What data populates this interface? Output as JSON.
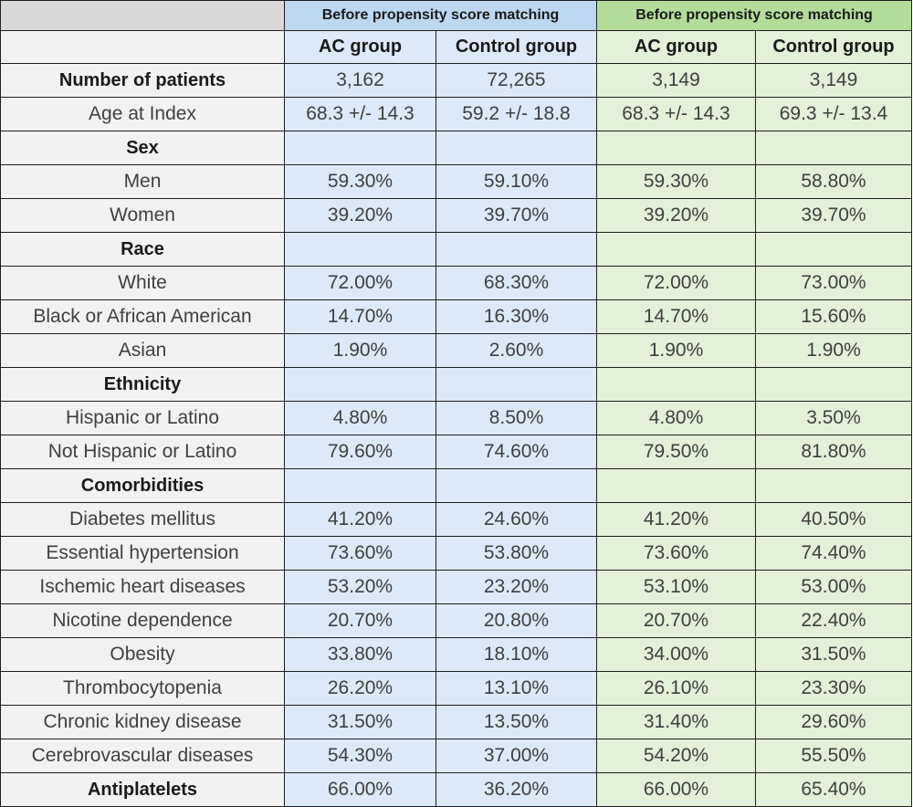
{
  "header": {
    "group_before": "Before propensity score matching",
    "group_after": "Before propensity score matching",
    "columns": [
      "AC group",
      "Control group",
      "AC group",
      "Control group"
    ]
  },
  "rows": [
    {
      "label": "Number of patients",
      "bold": true,
      "values": [
        "3,162",
        "72,265",
        "3,149",
        "3,149"
      ]
    },
    {
      "label": "Age at Index",
      "bold": false,
      "values": [
        "68.3 +/- 14.3",
        "59.2 +/- 18.8",
        "68.3 +/- 14.3",
        "69.3 +/- 13.4"
      ]
    },
    {
      "label": "Sex",
      "bold": true,
      "values": [
        "",
        "",
        "",
        ""
      ]
    },
    {
      "label": "Men",
      "bold": false,
      "values": [
        "59.30%",
        "59.10%",
        "59.30%",
        "58.80%"
      ]
    },
    {
      "label": "Women",
      "bold": false,
      "values": [
        "39.20%",
        "39.70%",
        "39.20%",
        "39.70%"
      ]
    },
    {
      "label": "Race",
      "bold": true,
      "values": [
        "",
        "",
        "",
        ""
      ]
    },
    {
      "label": "White",
      "bold": false,
      "values": [
        "72.00%",
        "68.30%",
        "72.00%",
        "73.00%"
      ]
    },
    {
      "label": "Black or African American",
      "bold": false,
      "values": [
        "14.70%",
        "16.30%",
        "14.70%",
        "15.60%"
      ]
    },
    {
      "label": "Asian",
      "bold": false,
      "values": [
        "1.90%",
        "2.60%",
        "1.90%",
        "1.90%"
      ]
    },
    {
      "label": "Ethnicity",
      "bold": true,
      "values": [
        "",
        "",
        "",
        ""
      ]
    },
    {
      "label": "Hispanic or Latino",
      "bold": false,
      "values": [
        "4.80%",
        "8.50%",
        "4.80%",
        "3.50%"
      ]
    },
    {
      "label": "Not Hispanic or Latino",
      "bold": false,
      "values": [
        "79.60%",
        "74.60%",
        "79.50%",
        "81.80%"
      ]
    },
    {
      "label": "Comorbidities",
      "bold": true,
      "values": [
        "",
        "",
        "",
        ""
      ]
    },
    {
      "label": "Diabetes mellitus",
      "bold": false,
      "values": [
        "41.20%",
        "24.60%",
        "41.20%",
        "40.50%"
      ]
    },
    {
      "label": "Essential hypertension",
      "bold": false,
      "values": [
        "73.60%",
        "53.80%",
        "73.60%",
        "74.40%"
      ]
    },
    {
      "label": "Ischemic heart diseases",
      "bold": false,
      "values": [
        "53.20%",
        "23.20%",
        "53.10%",
        "53.00%"
      ]
    },
    {
      "label": "Nicotine dependence",
      "bold": false,
      "values": [
        "20.70%",
        "20.80%",
        "20.70%",
        "22.40%"
      ]
    },
    {
      "label": "Obesity",
      "bold": false,
      "values": [
        "33.80%",
        "18.10%",
        "34.00%",
        "31.50%"
      ]
    },
    {
      "label": "Thrombocytopenia",
      "bold": false,
      "values": [
        "26.20%",
        "13.10%",
        "26.10%",
        "23.30%"
      ]
    },
    {
      "label": "Chronic kidney disease",
      "bold": false,
      "values": [
        "31.50%",
        "13.50%",
        "31.40%",
        "29.60%"
      ]
    },
    {
      "label": "Cerebrovascular diseases",
      "bold": false,
      "values": [
        "54.30%",
        "37.00%",
        "54.20%",
        "55.50%"
      ]
    },
    {
      "label": "Antiplatelets",
      "bold": true,
      "values": [
        "66.00%",
        "36.20%",
        "66.00%",
        "65.40%"
      ]
    }
  ]
}
